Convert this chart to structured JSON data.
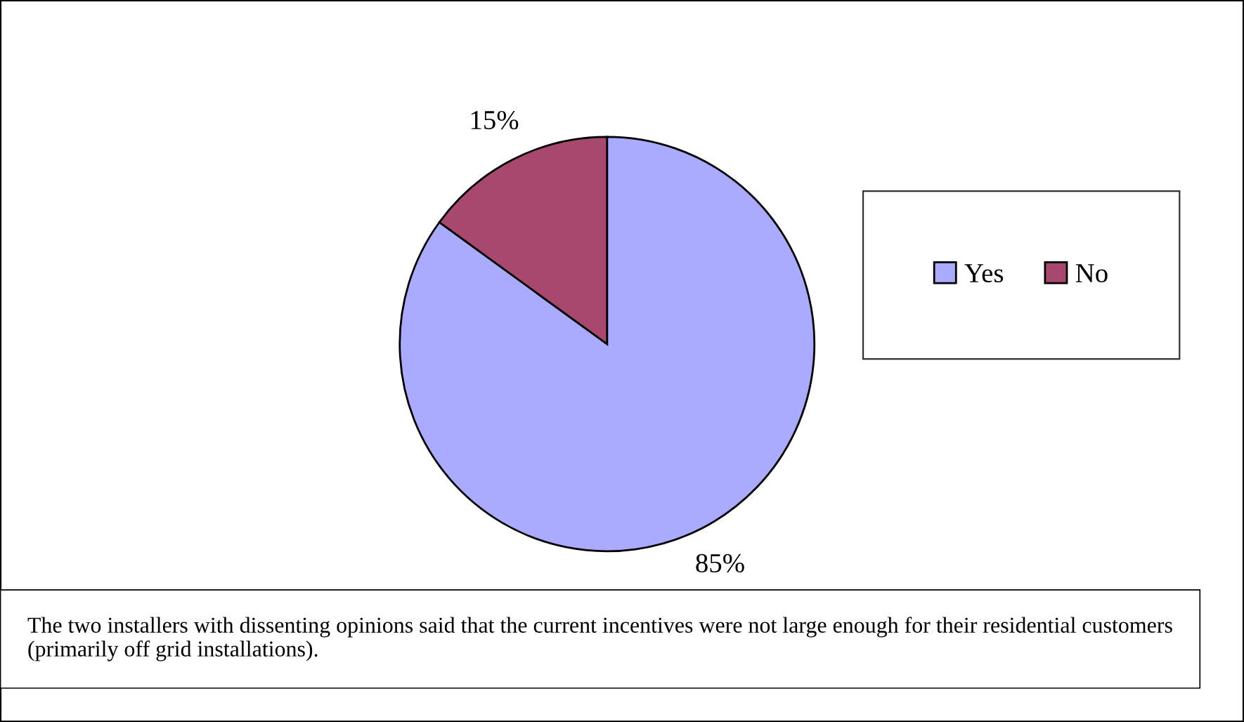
{
  "chart_data": {
    "type": "pie",
    "categories": [
      "Yes",
      "No"
    ],
    "values": [
      85,
      15
    ],
    "colors": [
      "#aaaaff",
      "#a8486f"
    ],
    "value_labels": [
      "85%",
      "15%"
    ],
    "legend": "right",
    "annotations": [
      "The two installers with dissenting opinions said that the current incentives were not large enough for their residential customers (primarily off grid installations)."
    ]
  }
}
